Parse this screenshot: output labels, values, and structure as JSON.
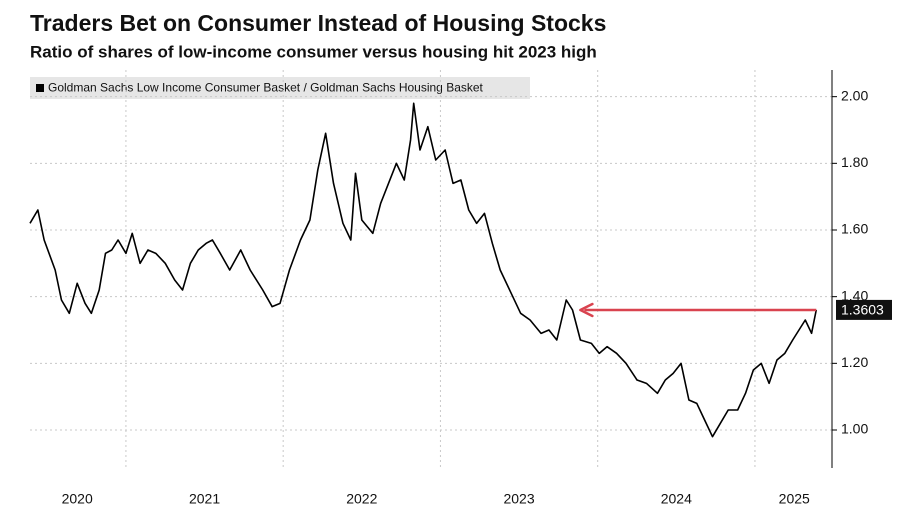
{
  "chart_data": {
    "type": "line",
    "title": "Traders Bet on Consumer Instead of Housing Stocks",
    "subtitle": "Ratio of shares of low-income consumer versus housing hit 2023 high",
    "x": [
      2020.39,
      2020.44,
      2020.48,
      2020.55,
      2020.59,
      2020.64,
      2020.69,
      2020.74,
      2020.78,
      2020.83,
      2020.87,
      2020.91,
      2020.95,
      2021.0,
      2021.04,
      2021.09,
      2021.14,
      2021.19,
      2021.25,
      2021.31,
      2021.36,
      2021.41,
      2021.46,
      2021.51,
      2021.55,
      2021.6,
      2021.66,
      2021.73,
      2021.79,
      2021.87,
      2021.93,
      2021.98,
      2022.04,
      2022.11,
      2022.17,
      2022.22,
      2022.27,
      2022.32,
      2022.38,
      2022.43,
      2022.46,
      2022.5,
      2022.57,
      2022.62,
      2022.67,
      2022.72,
      2022.77,
      2022.81,
      2022.83,
      2022.87,
      2022.92,
      2022.97,
      2023.03,
      2023.08,
      2023.13,
      2023.18,
      2023.23,
      2023.28,
      2023.33,
      2023.38,
      2023.45,
      2023.51,
      2023.57,
      2023.64,
      2023.69,
      2023.74,
      2023.8,
      2023.84,
      2023.89,
      2023.96,
      2024.01,
      2024.06,
      2024.12,
      2024.18,
      2024.25,
      2024.31,
      2024.38,
      2024.43,
      2024.48,
      2024.53,
      2024.58,
      2024.63,
      2024.68,
      2024.73,
      2024.78,
      2024.83,
      2024.89,
      2024.94,
      2024.99,
      2025.04,
      2025.09,
      2025.14,
      2025.19,
      2025.24,
      2025.28,
      2025.32,
      2025.36,
      2025.39
    ],
    "series": [
      {
        "name": "Goldman Sachs Low Income Consumer Basket / Goldman Sachs Housing Basket",
        "color": "#000000",
        "values": [
          1.62,
          1.66,
          1.57,
          1.48,
          1.39,
          1.35,
          1.44,
          1.38,
          1.35,
          1.42,
          1.53,
          1.54,
          1.57,
          1.53,
          1.59,
          1.5,
          1.54,
          1.53,
          1.5,
          1.45,
          1.42,
          1.5,
          1.54,
          1.56,
          1.57,
          1.53,
          1.48,
          1.54,
          1.48,
          1.42,
          1.37,
          1.38,
          1.48,
          1.57,
          1.63,
          1.78,
          1.89,
          1.74,
          1.62,
          1.57,
          1.77,
          1.63,
          1.59,
          1.68,
          1.74,
          1.8,
          1.75,
          1.87,
          1.98,
          1.84,
          1.91,
          1.81,
          1.84,
          1.74,
          1.75,
          1.66,
          1.62,
          1.65,
          1.56,
          1.48,
          1.41,
          1.35,
          1.33,
          1.29,
          1.3,
          1.27,
          1.39,
          1.36,
          1.27,
          1.26,
          1.23,
          1.25,
          1.23,
          1.2,
          1.15,
          1.14,
          1.11,
          1.15,
          1.17,
          1.2,
          1.09,
          1.08,
          1.03,
          0.98,
          1.02,
          1.06,
          1.06,
          1.11,
          1.18,
          1.2,
          1.14,
          1.21,
          1.23,
          1.27,
          1.3,
          1.33,
          1.29,
          1.3603
        ]
      }
    ],
    "xlim": [
      2020.39,
      2025.49
    ],
    "xgrid": [
      2021,
      2022,
      2023,
      2024,
      2025
    ],
    "xticks": [
      {
        "value": 2020.69,
        "label": "2020"
      },
      {
        "value": 2021.5,
        "label": "2021"
      },
      {
        "value": 2022.5,
        "label": "2022"
      },
      {
        "value": 2023.5,
        "label": "2023"
      },
      {
        "value": 2024.5,
        "label": "2024"
      },
      {
        "value": 2025.25,
        "label": "2025"
      }
    ],
    "ylim": [
      0.886,
      2.08
    ],
    "yticks": [
      {
        "value": 1,
        "label": "1.00"
      },
      {
        "value": 1.2,
        "label": "1.20"
      },
      {
        "value": 1.4,
        "label": "1.40"
      },
      {
        "value": 1.6,
        "label": "1.60"
      },
      {
        "value": 1.8,
        "label": "1.80"
      },
      {
        "value": 2,
        "label": "2.00"
      }
    ],
    "grid": true,
    "arrow": {
      "x_start": 2025.39,
      "x_end": 2023.89,
      "y": 1.36,
      "color": "#d9434f"
    }
  }
}
